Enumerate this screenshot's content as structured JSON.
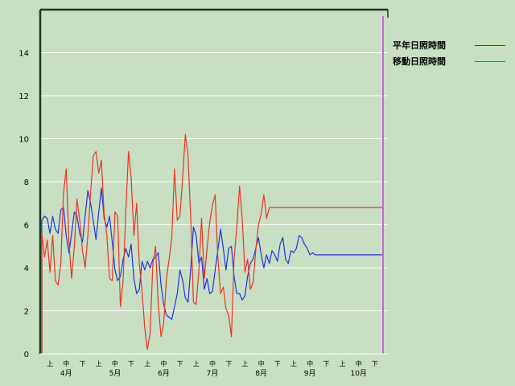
{
  "chart_data": {
    "type": "line",
    "title": "",
    "xlabel": "",
    "ylabel": "",
    "ylim": [
      0,
      16
    ],
    "yticks": [
      0,
      2,
      4,
      6,
      8,
      10,
      12,
      14
    ],
    "x_range": [
      0,
      63
    ],
    "x_subticks": [
      "上",
      "中",
      "下",
      "上",
      "中",
      "下",
      "上",
      "中",
      "下",
      "上",
      "中",
      "下",
      "上",
      "中",
      "下",
      "上",
      "中",
      "下",
      "上",
      "中",
      "下"
    ],
    "x_months": [
      "4月",
      "5月",
      "6月",
      "7月",
      "8月",
      "9月",
      "10月"
    ],
    "grid": "horizontal",
    "legend_position": "top-right",
    "current_marker_x": 63,
    "series": [
      {
        "name": "平年日照時間",
        "color": "#2233dd",
        "x": [
          0,
          0.5,
          1,
          1.5,
          2,
          2.5,
          3,
          3.5,
          4,
          4.5,
          5,
          5.5,
          6,
          6.5,
          7,
          7.5,
          8,
          8.5,
          9,
          9.5,
          10,
          10.5,
          11,
          11.5,
          12,
          12.5,
          13,
          13.5,
          14,
          14.5,
          15,
          15.5,
          16,
          16.5,
          17,
          17.5,
          18,
          18.5,
          19,
          19.5,
          20,
          20.5,
          21,
          21.5,
          22,
          22.5,
          23,
          23.5,
          24,
          24.5,
          25,
          25.5,
          26,
          26.5,
          27,
          27.5,
          28,
          28.5,
          29,
          29.5,
          30,
          30.5,
          31,
          31.5,
          32,
          32.5,
          33,
          33.5,
          34,
          34.5,
          35,
          35.5,
          36,
          36.5,
          37,
          37.5,
          38,
          38.5,
          39,
          39.5,
          40,
          40.5,
          41,
          41.5,
          42,
          42.5,
          43,
          43.5,
          44,
          44.5,
          45,
          45.5,
          46,
          46.5,
          47,
          47.5,
          48,
          48.5,
          49,
          49.5,
          50,
          50.5,
          51,
          51.5,
          52,
          52.5,
          53,
          53.5,
          54,
          54.5,
          55,
          55.5,
          56,
          56.5,
          57,
          57.5,
          58,
          58.5,
          59,
          59.5,
          60,
          60.5,
          61,
          61.5,
          62,
          62.5,
          63
        ],
        "values": [
          6.2,
          6.4,
          6.3,
          5.6,
          6.4,
          5.8,
          5.6,
          6.7,
          6.8,
          5.5,
          4.7,
          5.6,
          6.6,
          6.4,
          5.6,
          5.2,
          6.4,
          7.6,
          7.0,
          6.2,
          5.3,
          6.6,
          7.7,
          6.3,
          5.9,
          6.4,
          5.2,
          3.9,
          3.4,
          3.6,
          4.4,
          4.9,
          4.5,
          5.1,
          3.5,
          2.8,
          3.0,
          4.3,
          3.9,
          4.3,
          4.0,
          4.4,
          4.5,
          4.7,
          3.2,
          2.3,
          1.8,
          1.7,
          1.6,
          2.2,
          2.8,
          3.9,
          3.4,
          2.6,
          2.4,
          4.0,
          5.9,
          5.5,
          4.2,
          4.5,
          3.0,
          3.5,
          2.8,
          2.9,
          3.9,
          4.8,
          5.8,
          4.9,
          3.9,
          4.9,
          5.0,
          3.6,
          2.8,
          2.8,
          2.5,
          2.7,
          3.6,
          4.2,
          4.4,
          4.9,
          5.4,
          4.6,
          4.0,
          4.6,
          4.2,
          4.8,
          4.6,
          4.3,
          5.1,
          5.4,
          4.4,
          4.2,
          4.8,
          4.7,
          4.9,
          5.5,
          5.4,
          5.1,
          4.9,
          4.6,
          4.7,
          4.6,
          4.6,
          4.6,
          4.6,
          4.6,
          4.6,
          4.6,
          4.6,
          4.6,
          4.6,
          4.6,
          4.6,
          4.6,
          4.6,
          4.6,
          4.6,
          4.6,
          4.6,
          4.6,
          4.6,
          4.6,
          4.6,
          4.6,
          4.6,
          4.6,
          4.6
        ]
      },
      {
        "name": "移動日照時間",
        "color": "#ee3322",
        "x": [
          0,
          0.5,
          1,
          1.5,
          2,
          2.5,
          3,
          3.5,
          4,
          4.5,
          5,
          5.5,
          6,
          6.5,
          7,
          7.5,
          8,
          8.5,
          9,
          9.5,
          10,
          10.5,
          11,
          11.5,
          12,
          12.5,
          13,
          13.5,
          14,
          14.5,
          15,
          15.5,
          16,
          16.5,
          17,
          17.5,
          18,
          18.5,
          19,
          19.5,
          20,
          20.5,
          21,
          21.5,
          22,
          22.5,
          23,
          23.5,
          24,
          24.5,
          25,
          25.5,
          26,
          26.5,
          27,
          27.5,
          28,
          28.5,
          29,
          29.5,
          30,
          30.5,
          31,
          31.5,
          32,
          32.5,
          33,
          33.5,
          34,
          34.5,
          35,
          35.5,
          36,
          36.5,
          37,
          37.5,
          38,
          38.5,
          39,
          39.5,
          40,
          40.5,
          41,
          41.5,
          42,
          42.5,
          43,
          43.5,
          44,
          44.5,
          45,
          45.5,
          46,
          46.5,
          47,
          47.5,
          48,
          48.5,
          49,
          49.5,
          50,
          50.5,
          51,
          51.5,
          52,
          52.5,
          53,
          53.5,
          54,
          54.5,
          55,
          55.5,
          56,
          56.5,
          57,
          57.5,
          58,
          58.5,
          59,
          59.5,
          60,
          60.5,
          61,
          61.5,
          62,
          62.5,
          63
        ],
        "values": [
          5.6,
          4.5,
          5.3,
          3.8,
          5.5,
          3.4,
          3.2,
          4.2,
          7.5,
          8.6,
          5.2,
          3.5,
          5.0,
          7.2,
          6.2,
          4.8,
          4.0,
          5.5,
          7.5,
          9.2,
          9.4,
          8.4,
          9.0,
          6.5,
          5.5,
          3.5,
          3.4,
          6.6,
          6.4,
          2.2,
          3.4,
          6.6,
          9.4,
          8.2,
          5.5,
          7.0,
          4.2,
          2.9,
          1.2,
          0.2,
          1.0,
          4.2,
          5.0,
          2.3,
          0.8,
          1.4,
          3.5,
          4.4,
          5.4,
          8.6,
          6.2,
          6.4,
          8.2,
          10.2,
          9.2,
          6.2,
          2.4,
          2.3,
          3.9,
          6.3,
          3.5,
          4.9,
          6.1,
          6.9,
          7.4,
          4.5,
          2.8,
          3.1,
          2.1,
          1.8,
          0.8,
          4.4,
          5.9,
          7.8,
          6.3,
          3.8,
          4.4,
          3.0,
          3.3,
          4.8,
          6.0,
          6.5,
          7.4,
          6.3,
          6.8,
          6.8,
          6.8,
          6.8,
          6.8,
          6.8,
          6.8,
          6.8,
          6.8,
          6.8,
          6.8,
          6.8,
          6.8,
          6.8,
          6.8,
          6.8,
          6.8,
          6.8,
          6.8,
          6.8,
          6.8,
          6.8,
          6.8,
          6.8,
          6.8,
          6.8,
          6.8,
          6.8,
          6.8,
          6.8,
          6.8,
          6.8,
          6.8,
          6.8,
          6.8,
          6.8,
          6.8,
          6.8,
          6.8,
          6.8,
          6.8,
          6.8,
          6.8
        ]
      }
    ]
  }
}
